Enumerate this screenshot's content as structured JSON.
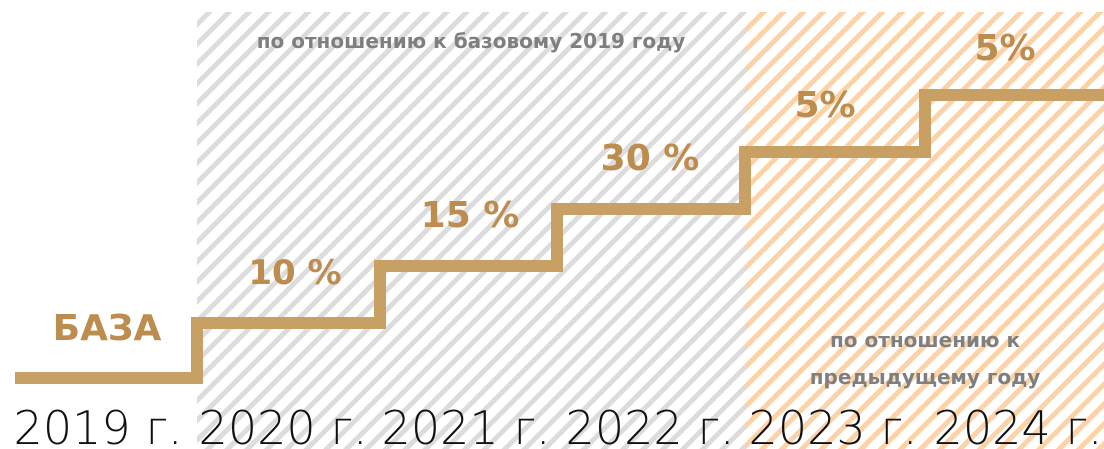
{
  "header_note": "по отношению к базовому 2019 году",
  "footer_note": [
    "по отношению к",
    "предыдущему году"
  ],
  "steps": [
    {
      "label": "БАЗА",
      "year": "2019 г."
    },
    {
      "label": "10 %",
      "year": "2020 г."
    },
    {
      "label": "15 %",
      "year": "2021 г."
    },
    {
      "label": "30 %",
      "year": "2022 г."
    },
    {
      "label": "5%",
      "year": "2023 г."
    },
    {
      "label": "5%",
      "year": "2024 г."
    }
  ]
}
